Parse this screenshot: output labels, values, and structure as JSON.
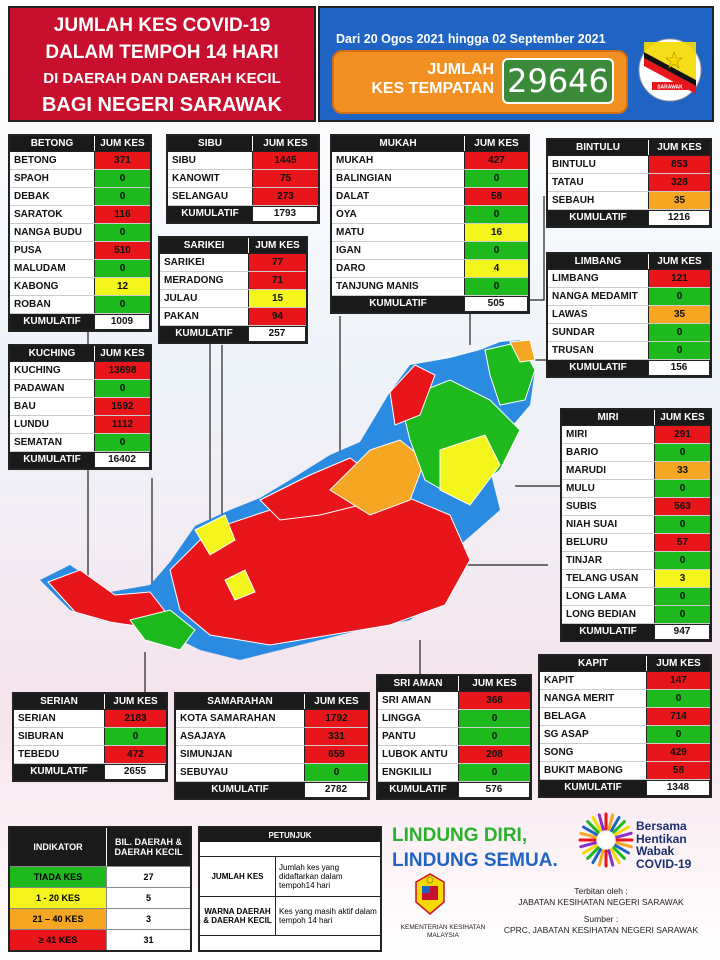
{
  "header": {
    "line1": "JUMLAH KES COVID-19",
    "line2": "DALAM TEMPOH 14 HARI",
    "line3": "DI DAERAH DAN DAERAH KECIL",
    "line4": "BAGI NEGERI SARAWAK",
    "period": "Dari 20 Ogos 2021 hingga 02 September 2021",
    "jumlah_label_1": "JUMLAH",
    "jumlah_label_2": "KES TEMPATAN",
    "jumlah_value": "29646",
    "flag_text": "SARAWAK"
  },
  "col_header": "JUM KES",
  "kumulatif_label": "KUMULATIF",
  "panels": {
    "betong": {
      "title": "BETONG",
      "rows": [
        [
          "BETONG",
          "371",
          "red"
        ],
        [
          "SPAOH",
          "0",
          "green"
        ],
        [
          "DEBAK",
          "0",
          "green"
        ],
        [
          "SARATOK",
          "116",
          "red"
        ],
        [
          "NANGA BUDU",
          "0",
          "green"
        ],
        [
          "PUSA",
          "510",
          "red"
        ],
        [
          "MALUDAM",
          "0",
          "green"
        ],
        [
          "KABONG",
          "12",
          "yellow"
        ],
        [
          "ROBAN",
          "0",
          "green"
        ]
      ],
      "total": "1009"
    },
    "sibu": {
      "title": "SIBU",
      "rows": [
        [
          "SIBU",
          "1445",
          "red"
        ],
        [
          "KANOWIT",
          "75",
          "red"
        ],
        [
          "SELANGAU",
          "273",
          "red"
        ]
      ],
      "total": "1793"
    },
    "mukah": {
      "title": "MUKAH",
      "rows": [
        [
          "MUKAH",
          "427",
          "red"
        ],
        [
          "BALINGIAN",
          "0",
          "green"
        ],
        [
          "DALAT",
          "58",
          "red"
        ],
        [
          "OYA",
          "0",
          "green"
        ],
        [
          "MATU",
          "16",
          "yellow"
        ],
        [
          "IGAN",
          "0",
          "green"
        ],
        [
          "DARO",
          "4",
          "yellow"
        ],
        [
          "TANJUNG MANIS",
          "0",
          "green"
        ]
      ],
      "total": "505"
    },
    "bintulu": {
      "title": "BINTULU",
      "rows": [
        [
          "BINTULU",
          "853",
          "red"
        ],
        [
          "TATAU",
          "328",
          "red"
        ],
        [
          "SEBAUH",
          "35",
          "orange"
        ]
      ],
      "total": "1216"
    },
    "sarikei": {
      "title": "SARIKEI",
      "rows": [
        [
          "SARIKEI",
          "77",
          "red"
        ],
        [
          "MERADONG",
          "71",
          "red"
        ],
        [
          "JULAU",
          "15",
          "yellow"
        ],
        [
          "PAKAN",
          "94",
          "red"
        ]
      ],
      "total": "257"
    },
    "limbang": {
      "title": "LIMBANG",
      "rows": [
        [
          "LIMBANG",
          "121",
          "red"
        ],
        [
          "NANGA MEDAMIT",
          "0",
          "green"
        ],
        [
          "LAWAS",
          "35",
          "orange"
        ],
        [
          "SUNDAR",
          "0",
          "green"
        ],
        [
          "TRUSAN",
          "0",
          "green"
        ]
      ],
      "total": "156"
    },
    "kuching": {
      "title": "KUCHING",
      "rows": [
        [
          "KUCHING",
          "13698",
          "red"
        ],
        [
          "PADAWAN",
          "0",
          "green"
        ],
        [
          "BAU",
          "1592",
          "red"
        ],
        [
          "LUNDU",
          "1112",
          "red"
        ],
        [
          "SEMATAN",
          "0",
          "green"
        ]
      ],
      "total": "16402"
    },
    "miri": {
      "title": "MIRI",
      "rows": [
        [
          "MIRI",
          "291",
          "red"
        ],
        [
          "BARIO",
          "0",
          "green"
        ],
        [
          "MARUDI",
          "33",
          "orange"
        ],
        [
          "MULU",
          "0",
          "green"
        ],
        [
          "SUBIS",
          "563",
          "red"
        ],
        [
          "NIAH SUAI",
          "0",
          "green"
        ],
        [
          "BELURU",
          "57",
          "red"
        ],
        [
          "TINJAR",
          "0",
          "green"
        ],
        [
          "TELANG USAN",
          "3",
          "yellow"
        ],
        [
          "LONG LAMA",
          "0",
          "green"
        ],
        [
          "LONG BEDIAN",
          "0",
          "green"
        ]
      ],
      "total": "947"
    },
    "kapit": {
      "title": "KAPIT",
      "rows": [
        [
          "KAPIT",
          "147",
          "red"
        ],
        [
          "NANGA MERIT",
          "0",
          "green"
        ],
        [
          "BELAGA",
          "714",
          "red"
        ],
        [
          "SG ASAP",
          "0",
          "green"
        ],
        [
          "SONG",
          "429",
          "red"
        ],
        [
          "BUKIT MABONG",
          "58",
          "red"
        ]
      ],
      "total": "1348"
    },
    "serian": {
      "title": "SERIAN",
      "rows": [
        [
          "SERIAN",
          "2183",
          "red"
        ],
        [
          "SIBURAN",
          "0",
          "green"
        ],
        [
          "TEBEDU",
          "472",
          "red"
        ]
      ],
      "total": "2655"
    },
    "samarahan": {
      "title": "SAMARAHAN",
      "rows": [
        [
          "KOTA SAMARAHAN",
          "1792",
          "red"
        ],
        [
          "ASAJAYA",
          "331",
          "red"
        ],
        [
          "SIMUNJAN",
          "659",
          "red"
        ],
        [
          "SEBUYAU",
          "0",
          "green"
        ]
      ],
      "total": "2782"
    },
    "sriaman": {
      "title": "SRI AMAN",
      "rows": [
        [
          "SRI AMAN",
          "368",
          "red"
        ],
        [
          "LINGGA",
          "0",
          "green"
        ],
        [
          "PANTU",
          "0",
          "green"
        ],
        [
          "LUBOK ANTU",
          "208",
          "red"
        ],
        [
          "ENGKILILI",
          "0",
          "green"
        ]
      ],
      "total": "576"
    }
  },
  "legend": {
    "h1": "INDIKATOR",
    "h2": "BIL. DAERAH & DAERAH KECIL",
    "rows": [
      [
        "TIADA KES",
        "27",
        "green"
      ],
      [
        "1 - 20 KES",
        "5",
        "yellow"
      ],
      [
        "21 – 40 KES",
        "3",
        "orange"
      ],
      [
        "≥ 41 KES",
        "31",
        "red"
      ]
    ]
  },
  "petunjuk": {
    "title": "PETUNJUK",
    "r1a": "JUMLAH KES",
    "r1b": "Jumlah kes yang didaftarkan dalam tempoh14 hari",
    "r2a": "WARNA DAERAH & DAERAH KECIL",
    "r2b": "Kes yang masih aktif dalam tempoh 14 hari"
  },
  "slogan": {
    "l1": "LINDUNG DIRI,",
    "l2": "LINDUNG SEMUA."
  },
  "bersama": {
    "l1": "Bersama",
    "l2": "Hentikan",
    "l3": "Wabak",
    "l4": "COVID-19"
  },
  "kkm": {
    "l1": "KEMENTERIAN KESIHATAN",
    "l2": "MALAYSIA"
  },
  "terbitan": {
    "l1": "Terbitan oleh :",
    "l2": "JABATAN  KESIHATAN  NEGERI SARAWAK",
    "l3": "Sumber :",
    "l4": "CPRC, JABATAN KESIHATAN NEGERI SARAWAK"
  },
  "map_labels": [
    "LAWAS",
    "LIMBANG",
    "MIRI",
    "MARUDI",
    "TELANG USAN",
    "BELAGA",
    "KAPIT",
    "SIBU",
    "KUCHING",
    "SERIAN",
    "BINTULU",
    "SEBAUH",
    "JULAU",
    "SONG"
  ],
  "colors": {
    "red": "#e8151b",
    "green": "#1db91d",
    "yellow": "#f5f51e",
    "orange": "#f5a623",
    "header_red": "#c8102e",
    "header_blue": "#1f63c4"
  }
}
